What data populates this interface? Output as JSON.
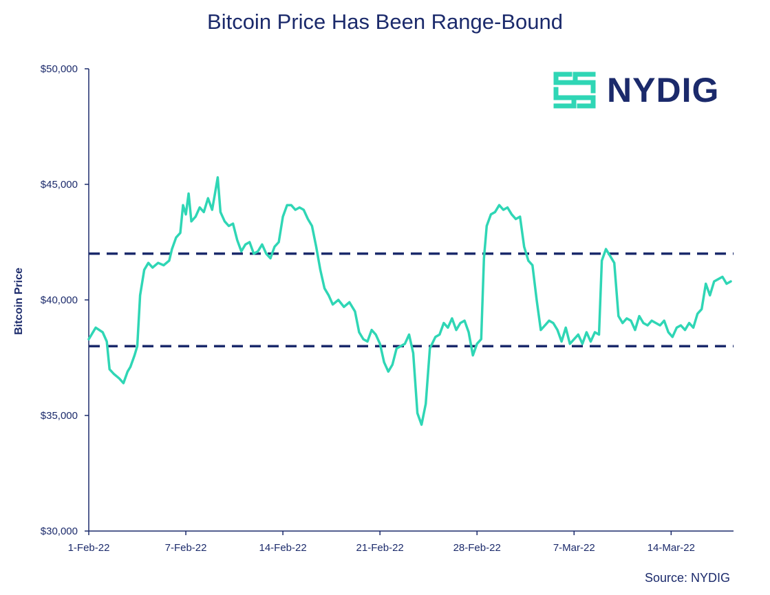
{
  "chart_data": {
    "type": "line",
    "title": "Bitcoin Price Has Been Range-Bound",
    "xlabel": "",
    "ylabel": "Bitcoin Price",
    "x_domain_days": [
      0,
      46.5
    ],
    "ylim": [
      30000,
      50000
    ],
    "y_ticks": [
      {
        "value": 30000,
        "label": "$30,000"
      },
      {
        "value": 35000,
        "label": "$35,000"
      },
      {
        "value": 40000,
        "label": "$40,000"
      },
      {
        "value": 45000,
        "label": "$45,000"
      },
      {
        "value": 50000,
        "label": "$50,000"
      }
    ],
    "x_ticks": [
      {
        "day": 0,
        "label": "1-Feb-22"
      },
      {
        "day": 7,
        "label": "7-Feb-22"
      },
      {
        "day": 14,
        "label": "14-Feb-22"
      },
      {
        "day": 21,
        "label": "21-Feb-22"
      },
      {
        "day": 28,
        "label": "28-Feb-22"
      },
      {
        "day": 35,
        "label": "7-Mar-22"
      },
      {
        "day": 42,
        "label": "14-Mar-22"
      }
    ],
    "reference_lines": [
      {
        "name": "range-high",
        "value": 42000,
        "style": "dashed"
      },
      {
        "name": "range-low",
        "value": 38000,
        "style": "dashed"
      }
    ],
    "series": [
      {
        "name": "Bitcoin Price",
        "color": "#2fd6b5",
        "points": [
          [
            0.0,
            38300
          ],
          [
            0.5,
            38800
          ],
          [
            1.0,
            38600
          ],
          [
            1.3,
            38200
          ],
          [
            1.5,
            37000
          ],
          [
            1.8,
            36800
          ],
          [
            2.2,
            36600
          ],
          [
            2.5,
            36400
          ],
          [
            2.8,
            36900
          ],
          [
            3.0,
            37100
          ],
          [
            3.3,
            37600
          ],
          [
            3.5,
            38000
          ],
          [
            3.7,
            40200
          ],
          [
            4.0,
            41300
          ],
          [
            4.3,
            41600
          ],
          [
            4.6,
            41400
          ],
          [
            5.0,
            41600
          ],
          [
            5.4,
            41500
          ],
          [
            5.8,
            41700
          ],
          [
            6.0,
            42200
          ],
          [
            6.3,
            42700
          ],
          [
            6.6,
            42900
          ],
          [
            6.8,
            44100
          ],
          [
            7.0,
            43700
          ],
          [
            7.2,
            44600
          ],
          [
            7.4,
            43400
          ],
          [
            7.7,
            43600
          ],
          [
            8.0,
            44000
          ],
          [
            8.3,
            43800
          ],
          [
            8.6,
            44400
          ],
          [
            8.9,
            43900
          ],
          [
            9.1,
            44600
          ],
          [
            9.3,
            45300
          ],
          [
            9.5,
            43800
          ],
          [
            9.8,
            43400
          ],
          [
            10.1,
            43200
          ],
          [
            10.4,
            43300
          ],
          [
            10.7,
            42600
          ],
          [
            11.0,
            42100
          ],
          [
            11.3,
            42400
          ],
          [
            11.6,
            42500
          ],
          [
            11.9,
            42000
          ],
          [
            12.2,
            42100
          ],
          [
            12.5,
            42400
          ],
          [
            12.8,
            42000
          ],
          [
            13.1,
            41800
          ],
          [
            13.4,
            42300
          ],
          [
            13.7,
            42500
          ],
          [
            14.0,
            43600
          ],
          [
            14.3,
            44100
          ],
          [
            14.6,
            44100
          ],
          [
            14.9,
            43900
          ],
          [
            15.2,
            44000
          ],
          [
            15.5,
            43900
          ],
          [
            15.8,
            43500
          ],
          [
            16.1,
            43200
          ],
          [
            16.4,
            42300
          ],
          [
            16.7,
            41300
          ],
          [
            17.0,
            40500
          ],
          [
            17.3,
            40200
          ],
          [
            17.6,
            39800
          ],
          [
            18.0,
            40000
          ],
          [
            18.4,
            39700
          ],
          [
            18.8,
            39900
          ],
          [
            19.2,
            39500
          ],
          [
            19.5,
            38600
          ],
          [
            19.8,
            38300
          ],
          [
            20.1,
            38200
          ],
          [
            20.4,
            38700
          ],
          [
            20.7,
            38500
          ],
          [
            21.0,
            38100
          ],
          [
            21.3,
            37300
          ],
          [
            21.6,
            36900
          ],
          [
            21.9,
            37200
          ],
          [
            22.2,
            37900
          ],
          [
            22.5,
            38000
          ],
          [
            22.8,
            38100
          ],
          [
            23.1,
            38500
          ],
          [
            23.4,
            37700
          ],
          [
            23.7,
            35100
          ],
          [
            24.0,
            34600
          ],
          [
            24.3,
            35500
          ],
          [
            24.6,
            37900
          ],
          [
            25.0,
            38400
          ],
          [
            25.3,
            38500
          ],
          [
            25.6,
            39000
          ],
          [
            25.9,
            38800
          ],
          [
            26.2,
            39200
          ],
          [
            26.5,
            38700
          ],
          [
            26.8,
            39000
          ],
          [
            27.1,
            39100
          ],
          [
            27.4,
            38600
          ],
          [
            27.7,
            37600
          ],
          [
            28.0,
            38100
          ],
          [
            28.3,
            38300
          ],
          [
            28.5,
            41800
          ],
          [
            28.7,
            43200
          ],
          [
            29.0,
            43700
          ],
          [
            29.3,
            43800
          ],
          [
            29.6,
            44100
          ],
          [
            29.9,
            43900
          ],
          [
            30.2,
            44000
          ],
          [
            30.5,
            43700
          ],
          [
            30.8,
            43500
          ],
          [
            31.1,
            43600
          ],
          [
            31.4,
            42300
          ],
          [
            31.7,
            41700
          ],
          [
            32.0,
            41500
          ],
          [
            32.3,
            40000
          ],
          [
            32.6,
            38700
          ],
          [
            32.9,
            38900
          ],
          [
            33.2,
            39100
          ],
          [
            33.5,
            39000
          ],
          [
            33.8,
            38700
          ],
          [
            34.1,
            38200
          ],
          [
            34.4,
            38800
          ],
          [
            34.7,
            38100
          ],
          [
            35.0,
            38300
          ],
          [
            35.3,
            38500
          ],
          [
            35.6,
            38100
          ],
          [
            35.9,
            38600
          ],
          [
            36.2,
            38200
          ],
          [
            36.5,
            38600
          ],
          [
            36.8,
            38500
          ],
          [
            37.0,
            41700
          ],
          [
            37.3,
            42200
          ],
          [
            37.6,
            41900
          ],
          [
            37.9,
            41600
          ],
          [
            38.2,
            39300
          ],
          [
            38.5,
            39000
          ],
          [
            38.8,
            39200
          ],
          [
            39.1,
            39100
          ],
          [
            39.4,
            38700
          ],
          [
            39.7,
            39300
          ],
          [
            40.0,
            39000
          ],
          [
            40.3,
            38900
          ],
          [
            40.6,
            39100
          ],
          [
            40.9,
            39000
          ],
          [
            41.2,
            38900
          ],
          [
            41.5,
            39100
          ],
          [
            41.8,
            38600
          ],
          [
            42.1,
            38400
          ],
          [
            42.4,
            38800
          ],
          [
            42.7,
            38900
          ],
          [
            43.0,
            38700
          ],
          [
            43.3,
            39000
          ],
          [
            43.6,
            38800
          ],
          [
            43.9,
            39400
          ],
          [
            44.2,
            39600
          ],
          [
            44.5,
            40700
          ],
          [
            44.8,
            40200
          ],
          [
            45.1,
            40800
          ],
          [
            45.4,
            40900
          ],
          [
            45.7,
            41000
          ],
          [
            46.0,
            40700
          ],
          [
            46.3,
            40800
          ]
        ]
      }
    ]
  },
  "logo": {
    "text": "NYDIG",
    "icon_color": "#2fd6b5"
  },
  "source": "Source: NYDIG"
}
